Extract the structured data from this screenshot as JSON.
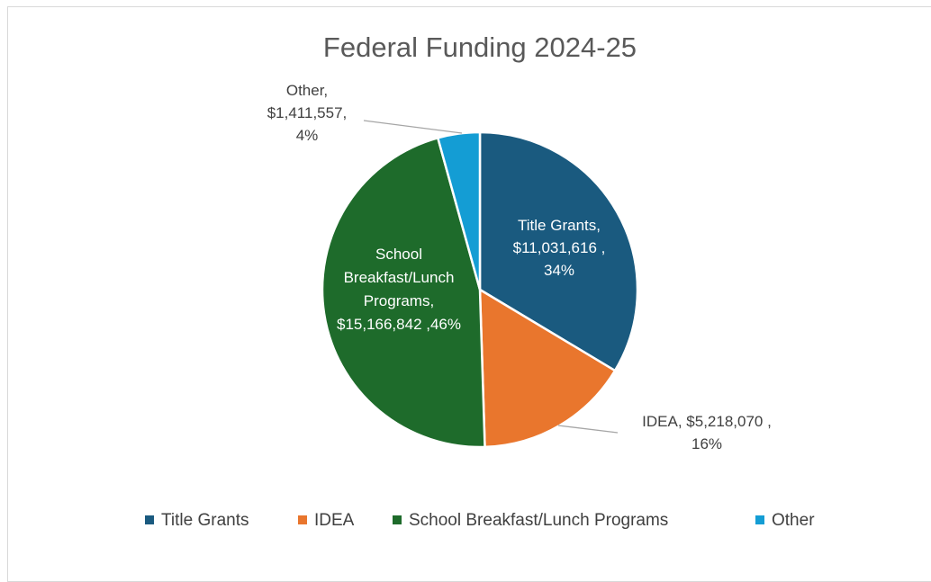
{
  "chart_data": {
    "type": "pie",
    "title": "Federal Funding 2024-25",
    "slices": [
      {
        "label": "Title Grants",
        "value": 11031616,
        "value_text": "$11,031,616",
        "percent_text": "34%",
        "color": "#1a5a7f"
      },
      {
        "label": "IDEA",
        "value": 5218070,
        "value_text": "$5,218,070",
        "percent_text": "16%",
        "color": "#e9762d"
      },
      {
        "label": "School Breakfast/Lunch Programs",
        "value": 15166842,
        "value_text": "$15,166,842",
        "percent_text": "46%",
        "color": "#1e6b2b"
      },
      {
        "label": "Other",
        "value": 1411557,
        "value_text": "$1,411,557",
        "percent_text": "4%",
        "color": "#149dd4"
      }
    ],
    "data_labels": [
      {
        "lines": [
          "Title Grants,",
          "$11,031,616 ,",
          "34%"
        ]
      },
      {
        "lines": [
          "IDEA, $5,218,070 ,",
          "16%"
        ]
      },
      {
        "lines": [
          "School",
          "Breakfast/Lunch",
          "Programs,",
          "$15,166,842 ,46%"
        ]
      },
      {
        "lines": [
          "Other,",
          "$1,411,557,",
          "4%"
        ]
      }
    ],
    "legend_position": "bottom"
  }
}
